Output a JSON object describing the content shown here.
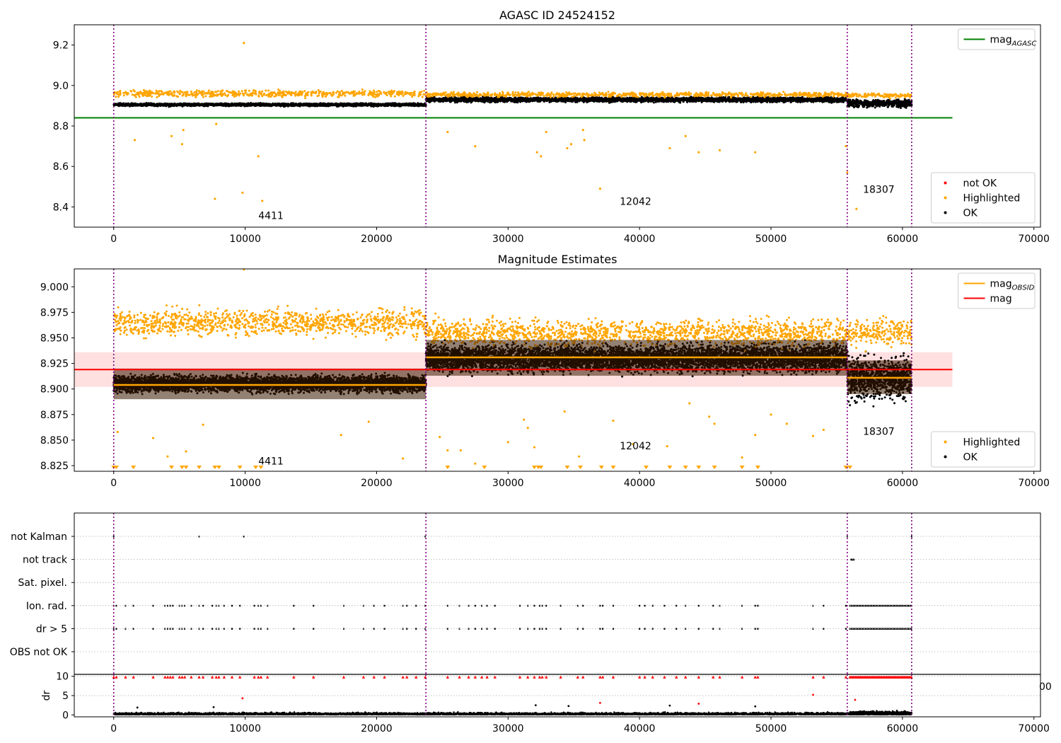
{
  "chart_data": [
    {
      "type": "scatter",
      "title": "AGASC ID 24524152",
      "xlim": [
        -3000,
        70500
      ],
      "ylim": [
        8.3,
        9.3
      ],
      "xticks": [
        0,
        10000,
        20000,
        30000,
        40000,
        50000,
        60000,
        70000
      ],
      "yticks": [
        8.4,
        8.6,
        8.8,
        9.0,
        9.2
      ],
      "ytick_format": 1,
      "obs_boundaries": [
        0,
        23750,
        55800,
        60700
      ],
      "segments": [
        {
          "x_start": 0,
          "x_end": 23750,
          "ok_center": 8.905,
          "ok_spread": 0.018,
          "hl_level": 8.96,
          "hl_spread": 0.03
        },
        {
          "x_start": 23750,
          "x_end": 55800,
          "ok_center": 8.93,
          "ok_spread": 0.03,
          "hl_level": 8.955,
          "hl_spread": 0.02
        },
        {
          "x_start": 55800,
          "x_end": 60700,
          "ok_center": 8.91,
          "ok_spread": 0.045,
          "hl_level": 8.95,
          "hl_spread": 0.02
        }
      ],
      "highlighted_outliers": [
        {
          "x": 1600,
          "y": 8.73
        },
        {
          "x": 4400,
          "y": 8.75
        },
        {
          "x": 5200,
          "y": 8.71
        },
        {
          "x": 5300,
          "y": 8.78
        },
        {
          "x": 7700,
          "y": 8.44
        },
        {
          "x": 7800,
          "y": 8.81
        },
        {
          "x": 9800,
          "y": 8.47
        },
        {
          "x": 9900,
          "y": 9.21
        },
        {
          "x": 11000,
          "y": 8.65
        },
        {
          "x": 11300,
          "y": 8.43
        },
        {
          "x": 25400,
          "y": 8.77
        },
        {
          "x": 27500,
          "y": 8.7
        },
        {
          "x": 32200,
          "y": 8.67
        },
        {
          "x": 32500,
          "y": 8.65
        },
        {
          "x": 32900,
          "y": 8.77
        },
        {
          "x": 34500,
          "y": 8.69
        },
        {
          "x": 34800,
          "y": 8.71
        },
        {
          "x": 35700,
          "y": 8.78
        },
        {
          "x": 35800,
          "y": 8.73
        },
        {
          "x": 37000,
          "y": 8.49
        },
        {
          "x": 42300,
          "y": 8.69
        },
        {
          "x": 43500,
          "y": 8.75
        },
        {
          "x": 44500,
          "y": 8.67
        },
        {
          "x": 46100,
          "y": 8.68
        },
        {
          "x": 48800,
          "y": 8.67
        },
        {
          "x": 55700,
          "y": 8.7
        },
        {
          "x": 55800,
          "y": 8.57
        },
        {
          "x": 56500,
          "y": 8.39
        }
      ],
      "horizontal_lines": [
        {
          "name": "mag_AGASC",
          "y": 8.84,
          "x_start": -3000,
          "x_end": 63800,
          "color": "#008000"
        }
      ],
      "annotations": [
        {
          "text": "4411",
          "x": 11000,
          "y": 8.34
        },
        {
          "text": "12042",
          "x": 38500,
          "y": 8.41
        },
        {
          "text": "18307",
          "x": 57000,
          "y": 8.47
        }
      ],
      "legend_top": {
        "placement": "top-right",
        "entries": [
          {
            "label": "mag",
            "subscript": "AGASC",
            "color": "#008000"
          }
        ]
      },
      "legend_bottom": {
        "placement": "bottom-right",
        "entries": [
          {
            "label": "not OK",
            "color": "#ff0000"
          },
          {
            "label": "Highlighted",
            "color": "#ffa500"
          },
          {
            "label": "OK",
            "color": "#000000"
          }
        ]
      }
    },
    {
      "type": "scatter",
      "title": "Magnitude Estimates",
      "xlim": [
        -3000,
        70500
      ],
      "ylim": [
        8.8195,
        9.0175
      ],
      "xticks": [
        0,
        10000,
        20000,
        30000,
        40000,
        50000,
        60000,
        70000
      ],
      "yticks": [
        8.825,
        8.85,
        8.875,
        8.9,
        8.925,
        8.95,
        8.975,
        9.0
      ],
      "ytick_format": 3,
      "obs_boundaries": [
        0,
        23750,
        55800,
        60700
      ],
      "segments": [
        {
          "x_start": 0,
          "x_end": 23750,
          "ok_center": 8.905,
          "ok_spread": 0.018,
          "band_low": 8.89,
          "band_high": 8.92,
          "mag_obsid": 8.904,
          "hl_level": 8.965,
          "hl_spread": 0.02
        },
        {
          "x_start": 23750,
          "x_end": 55800,
          "ok_center": 8.93,
          "ok_spread": 0.03,
          "band_low": 8.913,
          "band_high": 8.948,
          "mag_obsid": 8.931,
          "hl_level": 8.955,
          "hl_spread": 0.02
        },
        {
          "x_start": 55800,
          "x_end": 60700,
          "ok_center": 8.91,
          "ok_spread": 0.045,
          "band_low": 8.895,
          "band_high": 8.928,
          "mag_obsid": 8.911,
          "hl_level": 8.955,
          "hl_spread": 0.02
        }
      ],
      "mag_line": {
        "name": "mag",
        "y": 8.919,
        "band_low": 8.902,
        "band_high": 8.936,
        "x_start": -3000,
        "x_end": 63800,
        "color": "#ff0000"
      },
      "highlighted_outliers": [
        {
          "x": 300,
          "y": 8.858
        },
        {
          "x": 3000,
          "y": 8.852
        },
        {
          "x": 4100,
          "y": 8.834
        },
        {
          "x": 5500,
          "y": 8.839
        },
        {
          "x": 6800,
          "y": 8.865
        },
        {
          "x": 9900,
          "y": 9.017
        },
        {
          "x": 17300,
          "y": 8.855
        },
        {
          "x": 19400,
          "y": 8.868
        },
        {
          "x": 22000,
          "y": 8.832
        },
        {
          "x": 24800,
          "y": 8.853
        },
        {
          "x": 25400,
          "y": 8.84
        },
        {
          "x": 26400,
          "y": 8.84
        },
        {
          "x": 27500,
          "y": 8.827
        },
        {
          "x": 30000,
          "y": 8.848
        },
        {
          "x": 31200,
          "y": 8.87
        },
        {
          "x": 31500,
          "y": 8.862
        },
        {
          "x": 32000,
          "y": 8.843
        },
        {
          "x": 34300,
          "y": 8.878
        },
        {
          "x": 35400,
          "y": 8.834
        },
        {
          "x": 38000,
          "y": 8.869
        },
        {
          "x": 39500,
          "y": 8.846
        },
        {
          "x": 42100,
          "y": 8.844
        },
        {
          "x": 43800,
          "y": 8.886
        },
        {
          "x": 45300,
          "y": 8.873
        },
        {
          "x": 45700,
          "y": 8.866
        },
        {
          "x": 47800,
          "y": 8.833
        },
        {
          "x": 48800,
          "y": 8.855
        },
        {
          "x": 50000,
          "y": 8.875
        },
        {
          "x": 51200,
          "y": 8.866
        },
        {
          "x": 53200,
          "y": 8.854
        },
        {
          "x": 54000,
          "y": 8.86
        }
      ],
      "clipped_markers_x": [
        0,
        200,
        1500,
        4400,
        5200,
        5500,
        6500,
        7700,
        8000,
        9600,
        10800,
        11200,
        25400,
        28200,
        32000,
        32300,
        32500,
        34500,
        35500,
        37100,
        38000,
        40500,
        42300,
        43500,
        44500,
        45700,
        47800,
        49000,
        55700,
        56000
      ],
      "annotations": [
        {
          "text": "4411",
          "x": 11000,
          "y": 8.826
        },
        {
          "text": "12042",
          "x": 38500,
          "y": 8.841
        },
        {
          "text": "18307",
          "x": 57000,
          "y": 8.855
        }
      ],
      "legend_top": {
        "placement": "top-right",
        "entries": [
          {
            "label": "mag",
            "subscript": "OBSID",
            "color": "#ffa500"
          },
          {
            "label": "mag",
            "color": "#ff0000"
          }
        ]
      },
      "legend_bottom": {
        "placement": "bottom-right",
        "entries": [
          {
            "label": "Highlighted",
            "color": "#ffa500"
          },
          {
            "label": "OK",
            "color": "#000000"
          }
        ]
      }
    },
    {
      "type": "scatter",
      "title": "",
      "xlim": [
        -3000,
        70500
      ],
      "categories": [
        "not Kalman",
        "not track",
        "Sat. pixel.",
        "Ion. rad.",
        "dr > 5",
        "OBS not OK"
      ],
      "obs_boundaries": [
        0,
        23750,
        55800,
        60700
      ],
      "flag_points": {
        "not Kalman": [
          0,
          6500,
          9900,
          23700,
          55800,
          60700
        ],
        "not track": [
          56100,
          56200,
          56300
        ],
        "Sat. pixel.": [],
        "Ion. rad.": [
          0,
          200,
          900,
          1500,
          3000,
          3900,
          4100,
          4300,
          4500,
          5000,
          5200,
          5400,
          5900,
          6500,
          6800,
          7500,
          7800,
          8000,
          8400,
          9000,
          9600,
          10700,
          11000,
          11200,
          11700,
          13700,
          15200,
          17500,
          19000,
          19800,
          20600,
          22000,
          22300,
          23000,
          23700,
          25400,
          26300,
          27000,
          27500,
          28000,
          28400,
          29000,
          30900,
          31500,
          32000,
          32400,
          32600,
          32900,
          34000,
          35300,
          35700,
          37000,
          37200,
          38000,
          40000,
          40400,
          41000,
          41900,
          42800,
          43500,
          44500,
          45600,
          46100,
          47800,
          48800,
          49000,
          53200,
          54000,
          55700
        ],
        "dr > 5": [
          0,
          200,
          900,
          1500,
          3000,
          3900,
          4100,
          4300,
          4500,
          5000,
          5200,
          5400,
          5900,
          6500,
          6800,
          7500,
          7800,
          8000,
          8400,
          9000,
          9600,
          10700,
          11000,
          11200,
          11700,
          13700,
          15200,
          17500,
          19000,
          19800,
          20600,
          22000,
          22300,
          23000,
          23700,
          25400,
          26300,
          27000,
          27500,
          28000,
          28400,
          29000,
          30900,
          31500,
          32000,
          32400,
          32600,
          32900,
          34000,
          35300,
          35700,
          37000,
          37200,
          38000,
          40000,
          40400,
          41000,
          41900,
          42800,
          43500,
          44500,
          45600,
          46100,
          47800,
          48800,
          49000,
          53200,
          54000,
          55700
        ],
        "OBS not OK": []
      },
      "dense_flag_ranges": {
        "Ion. rad.": [
          56000,
          60700
        ],
        "dr > 5": [
          56000,
          60700
        ]
      }
    },
    {
      "type": "scatter",
      "title": "",
      "xlim": [
        -3000,
        70500
      ],
      "ylim": [
        -0.5,
        10.5
      ],
      "xticks": [
        0,
        10000,
        20000,
        30000,
        40000,
        50000,
        60000,
        70000
      ],
      "yticks": [
        0,
        5,
        10
      ],
      "ylabel": "dr",
      "obs_boundaries": [
        0,
        23750,
        55800,
        60700
      ],
      "clipped_dr_x": [
        0,
        200,
        900,
        1500,
        3000,
        3900,
        4100,
        4300,
        4500,
        5000,
        5200,
        5400,
        5900,
        6500,
        6800,
        7500,
        7800,
        8000,
        8400,
        9000,
        9600,
        10700,
        11000,
        11200,
        11700,
        13700,
        15200,
        17500,
        19000,
        19800,
        20600,
        22000,
        22300,
        23000,
        23700,
        25400,
        26300,
        27000,
        27500,
        28000,
        28400,
        29000,
        30900,
        31500,
        32000,
        32400,
        32600,
        32900,
        34000,
        35300,
        35700,
        37000,
        37200,
        38000,
        40000,
        40400,
        41000,
        41900,
        42800,
        43500,
        44500,
        45600,
        46100,
        47800,
        48800,
        49000,
        53200,
        54000,
        55700
      ],
      "clipped_dense_range": [
        56000,
        60700
      ],
      "dr_outliers": [
        {
          "x": 9800,
          "y": 4.3,
          "color": "#ff0000"
        },
        {
          "x": 37000,
          "y": 3.1,
          "color": "#ff0000"
        },
        {
          "x": 44500,
          "y": 2.9,
          "color": "#ff0000"
        },
        {
          "x": 53200,
          "y": 5.2,
          "color": "#ff0000"
        },
        {
          "x": 56400,
          "y": 3.9,
          "color": "#ff0000"
        },
        {
          "x": 1800,
          "y": 1.9,
          "color": "#000000"
        },
        {
          "x": 7600,
          "y": 2.0,
          "color": "#000000"
        },
        {
          "x": 32100,
          "y": 2.5,
          "color": "#000000"
        },
        {
          "x": 34600,
          "y": 2.3,
          "color": "#000000"
        },
        {
          "x": 42300,
          "y": 2.4,
          "color": "#000000"
        },
        {
          "x": 48800,
          "y": 2.2,
          "color": "#000000"
        }
      ],
      "clipped_tick_fragment": "00"
    }
  ]
}
